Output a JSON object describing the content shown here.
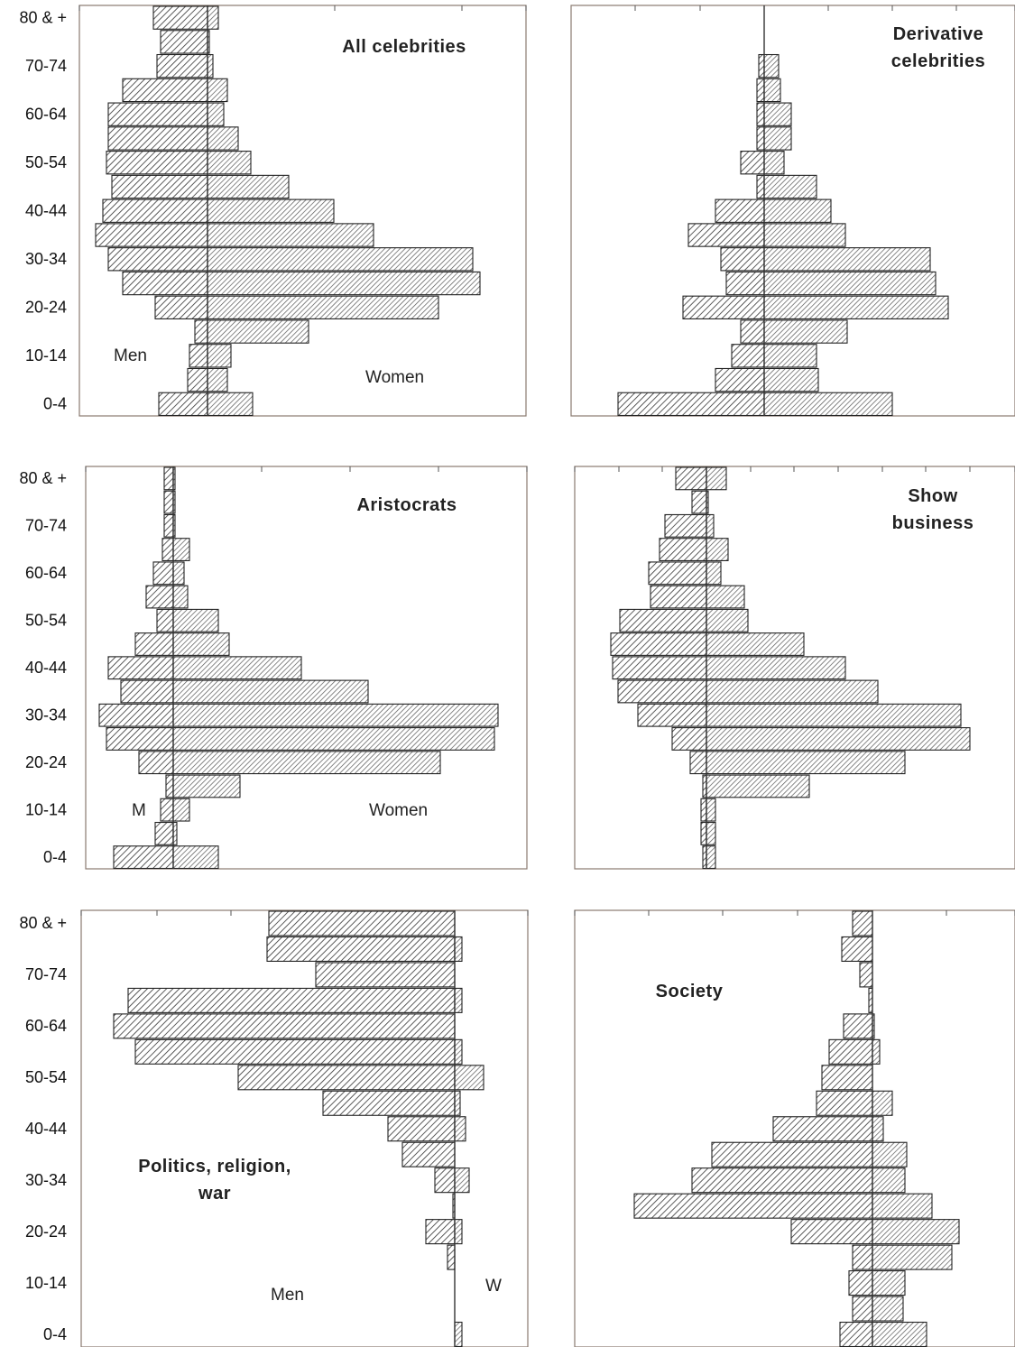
{
  "chart_data": {
    "type": "bar",
    "orientation": "horizontal",
    "layout": "population-pyramid",
    "age_groups": [
      "0-4",
      "5-9",
      "10-14",
      "15-19",
      "20-24",
      "25-29",
      "30-34",
      "35-39",
      "40-44",
      "45-49",
      "50-54",
      "55-59",
      "60-64",
      "65-69",
      "70-74",
      "75-79",
      "80 & +"
    ],
    "tick_labels": [
      "0-4",
      "10-14",
      "20-24",
      "30-34",
      "40-44",
      "50-54",
      "60-64",
      "70-74",
      "80 & +"
    ],
    "panels": [
      {
        "id": "all-celebrities",
        "title": [
          "All celebrities"
        ],
        "label_left": "Men",
        "label_right": "Women",
        "men": [
          54,
          22,
          20,
          14,
          58,
          94,
          110,
          124,
          116,
          106,
          112,
          110,
          110,
          94,
          56,
          52,
          60
        ],
        "women": [
          50,
          22,
          26,
          112,
          256,
          302,
          294,
          184,
          140,
          90,
          48,
          34,
          18,
          22,
          6,
          2,
          12
        ]
      },
      {
        "id": "derivative-celebrities",
        "title": [
          "Derivative",
          "celebrities"
        ],
        "label_left": "",
        "label_right": "",
        "men": [
          162,
          54,
          36,
          26,
          90,
          42,
          48,
          84,
          54,
          8,
          26,
          8,
          8,
          8,
          6,
          0,
          0
        ],
        "women": [
          142,
          60,
          58,
          92,
          204,
          190,
          184,
          90,
          74,
          58,
          22,
          30,
          30,
          18,
          16,
          0,
          0
        ]
      },
      {
        "id": "aristocrats",
        "title": [
          "Aristocrats"
        ],
        "label_left": "M",
        "label_right": "Women",
        "men": [
          66,
          20,
          14,
          8,
          38,
          74,
          82,
          58,
          72,
          42,
          18,
          30,
          22,
          12,
          10,
          10,
          10
        ],
        "women": [
          50,
          4,
          18,
          74,
          296,
          356,
          360,
          216,
          142,
          62,
          50,
          16,
          12,
          18,
          2,
          2,
          2
        ]
      },
      {
        "id": "show-business",
        "title": [
          "Show",
          "business"
        ],
        "label_left": "",
        "label_right": "",
        "men": [
          4,
          6,
          6,
          4,
          18,
          38,
          76,
          98,
          104,
          106,
          96,
          62,
          64,
          52,
          46,
          16,
          34
        ],
        "women": [
          10,
          10,
          10,
          114,
          220,
          292,
          282,
          190,
          154,
          108,
          46,
          42,
          16,
          24,
          8,
          2,
          22
        ]
      },
      {
        "id": "politics-religion-war",
        "title": [
          "Politics, religion,",
          "war"
        ],
        "label_left": "Men",
        "label_right": "W",
        "men": [
          0,
          0,
          0,
          8,
          32,
          2,
          22,
          58,
          74,
          146,
          240,
          354,
          378,
          362,
          154,
          208,
          206
        ],
        "women": [
          8,
          0,
          0,
          0,
          8,
          0,
          16,
          0,
          12,
          6,
          32,
          8,
          0,
          8,
          0,
          8,
          0
        ],
        "note_x_range": [
          -420,
          70
        ]
      },
      {
        "id": "society",
        "title": [
          "Society"
        ],
        "label_left": "",
        "label_right": "",
        "men": [
          36,
          22,
          26,
          22,
          90,
          264,
          200,
          178,
          110,
          62,
          56,
          48,
          32,
          4,
          14,
          34,
          22
        ],
        "women": [
          60,
          34,
          36,
          88,
          96,
          66,
          36,
          38,
          12,
          22,
          0,
          8,
          2,
          0,
          0,
          0,
          0
        ]
      }
    ]
  }
}
